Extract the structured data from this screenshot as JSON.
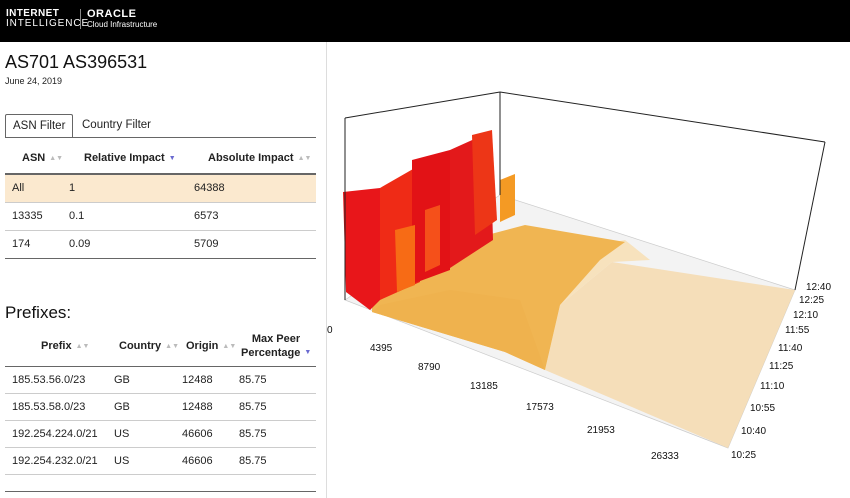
{
  "header": {
    "brand_line1": "INTERNET",
    "brand_line2": "INTELLIGENCE",
    "oracle": "ORACLE",
    "oracle_sub": "Cloud Infrastructure"
  },
  "page": {
    "title": "AS701 AS396531",
    "date": "June 24, 2019"
  },
  "tabs": [
    {
      "label": "ASN Filter",
      "active": true
    },
    {
      "label": "Country Filter",
      "active": false
    }
  ],
  "asn_table": {
    "columns": [
      "ASN",
      "Relative Impact",
      "Absolute Impact"
    ],
    "rows": [
      {
        "asn": "All",
        "relative": "1",
        "absolute": "64388",
        "selected": true
      },
      {
        "asn": "13335",
        "relative": "0.1",
        "absolute": "6573",
        "selected": false
      },
      {
        "asn": "174",
        "relative": "0.09",
        "absolute": "5709",
        "selected": false
      }
    ]
  },
  "prefixes": {
    "title": "Prefixes:",
    "columns": [
      "Prefix",
      "Country",
      "Origin",
      "Max Peer",
      "Percentage"
    ],
    "rows": [
      {
        "prefix": "185.53.56.0/23",
        "country": "GB",
        "origin": "12488",
        "max_peer": "85.75"
      },
      {
        "prefix": "185.53.58.0/23",
        "country": "GB",
        "origin": "12488",
        "max_peer": "85.75"
      },
      {
        "prefix": "192.254.224.0/21",
        "country": "US",
        "origin": "46606",
        "max_peer": "85.75"
      },
      {
        "prefix": "192.254.232.0/21",
        "country": "US",
        "origin": "46606",
        "max_peer": "85.75"
      }
    ]
  },
  "chart_data": {
    "type": "area",
    "x_ticks": [
      "4395",
      "8790",
      "13185",
      "17573",
      "21953",
      "26333"
    ],
    "time_ticks": [
      "10:25",
      "10:40",
      "10:55",
      "11:10",
      "11:25",
      "11:40",
      "11:55",
      "12:10",
      "12:25",
      "12:40"
    ],
    "partial_left_tick": "0",
    "colors": {
      "high": "#e8161a",
      "mid": "#f76b15",
      "low": "#f0b552",
      "faint": "#f5dcb3"
    }
  }
}
